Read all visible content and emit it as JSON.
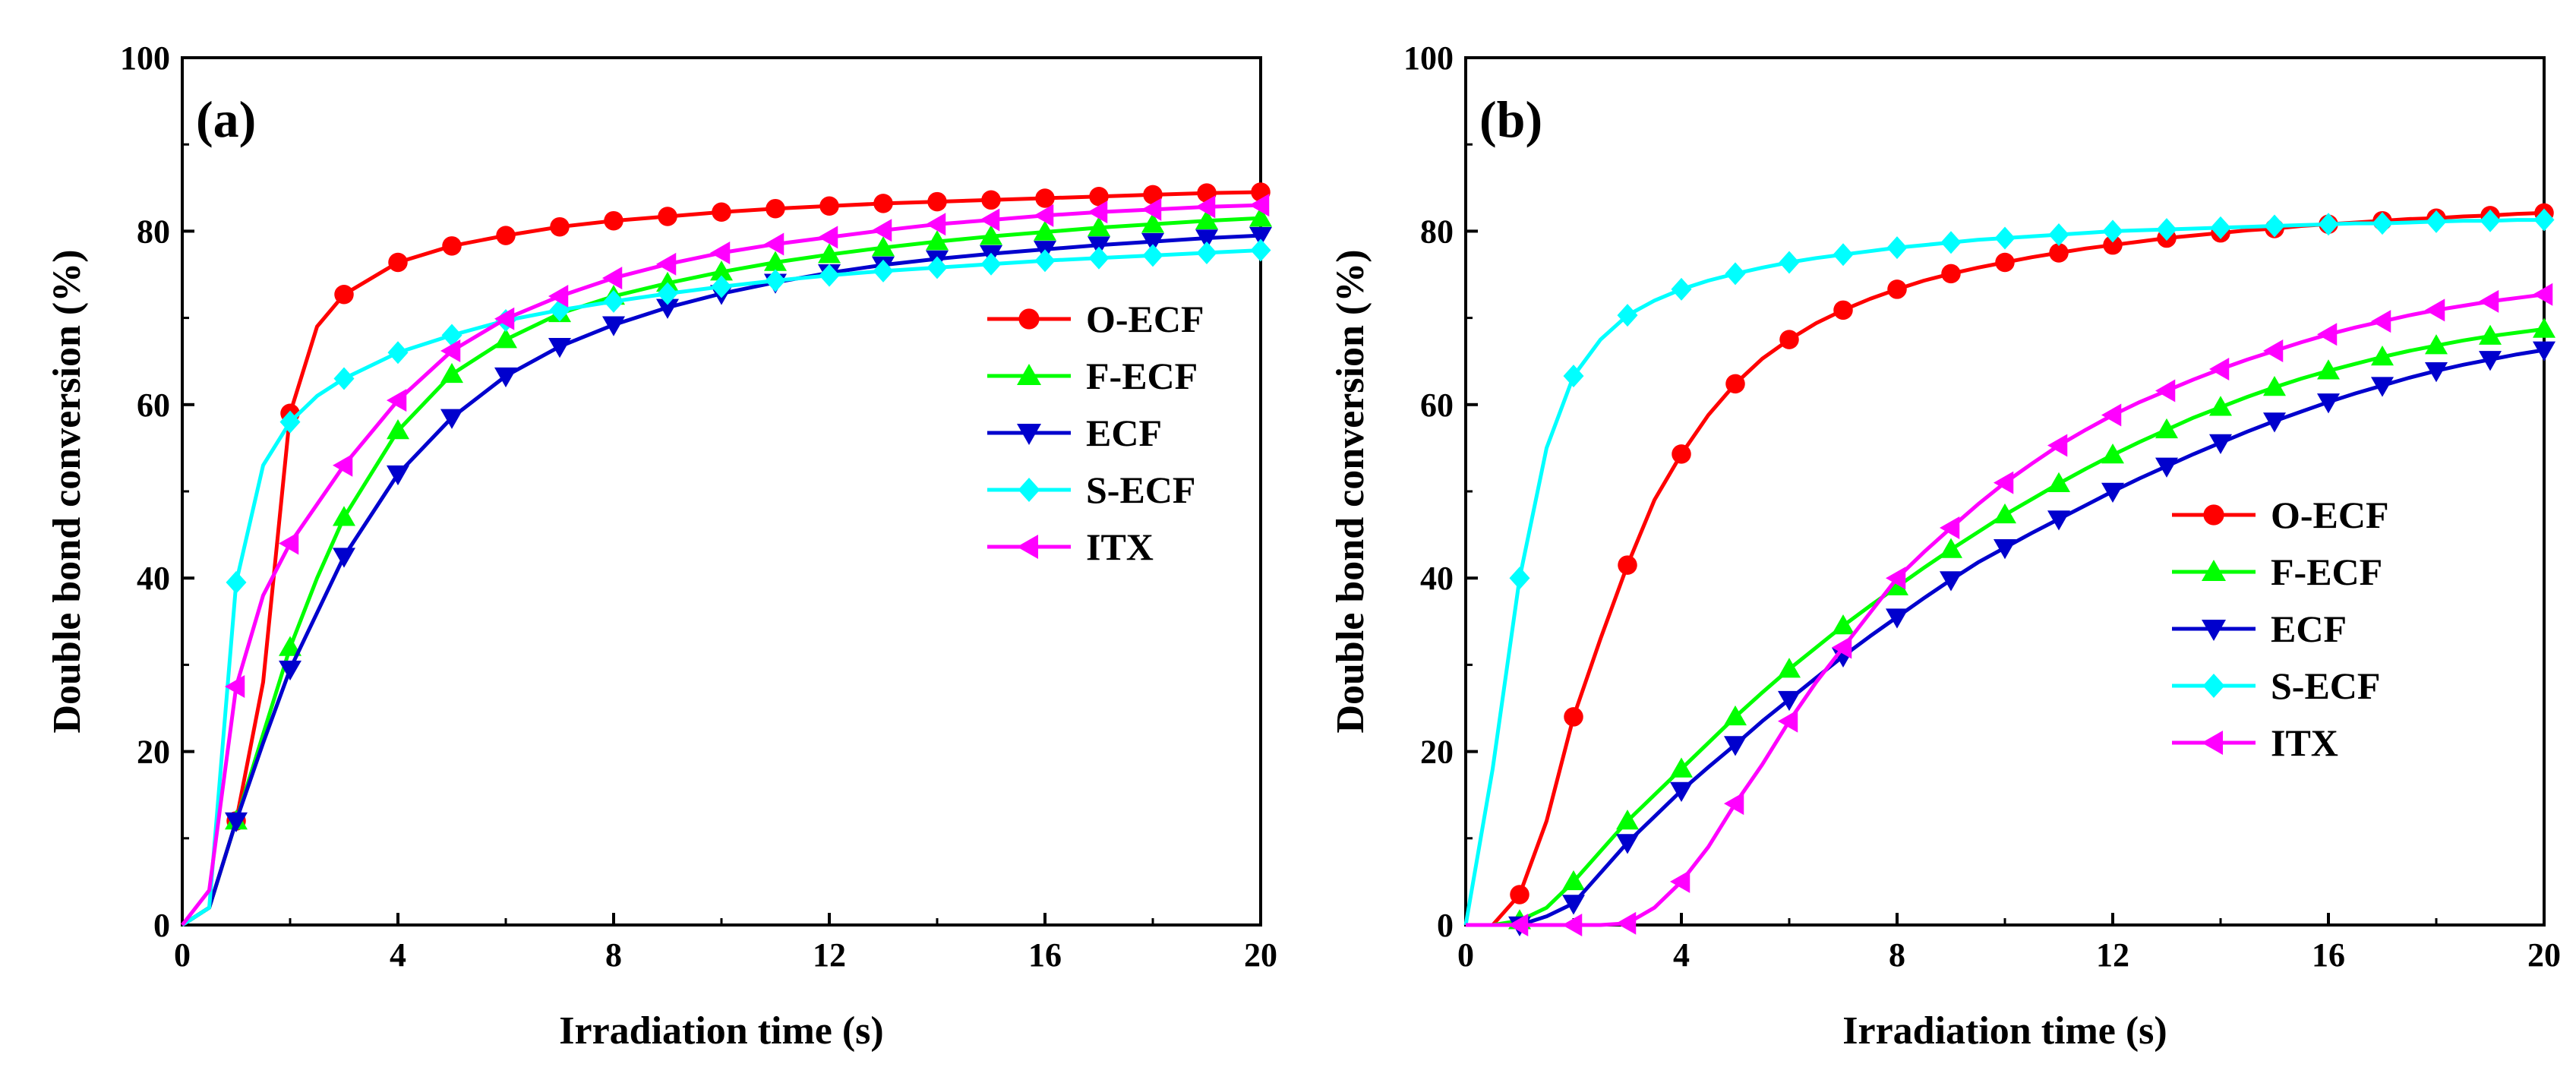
{
  "figure": {
    "panels": [
      "a",
      "b"
    ]
  },
  "colors": {
    "O-ECF": "#ff0000",
    "F-ECF": "#00ff00",
    "ECF": "#0000cd",
    "S-ECF": "#00ffff",
    "ITX": "#ff00ff"
  },
  "markers": {
    "O-ECF": "circle",
    "F-ECF": "triangle-up",
    "ECF": "triangle-down",
    "S-ECF": "diamond",
    "ITX": "triangle-left"
  },
  "chart_data": [
    {
      "type": "line",
      "panel_label": "(a)",
      "title": "",
      "xlabel": "Irradiation time (s)",
      "ylabel": "Double bond conversion (%)",
      "xlim": [
        0,
        20
      ],
      "ylim": [
        0,
        100
      ],
      "xticks": [
        0,
        4,
        8,
        12,
        16,
        20
      ],
      "yticks": [
        0,
        20,
        40,
        60,
        80,
        100
      ],
      "legend_position": "middle-right",
      "x": [
        0,
        0.5,
        1,
        1.5,
        2,
        2.5,
        3,
        4,
        5,
        6,
        7,
        8,
        9,
        10,
        11,
        12,
        13,
        14,
        15,
        16,
        17,
        18,
        19,
        20
      ],
      "series": [
        {
          "name": "O-ECF",
          "values": [
            0,
            2,
            12,
            28,
            59,
            69,
            72.7,
            76.4,
            78.3,
            79.5,
            80.5,
            81.2,
            81.7,
            82.2,
            82.6,
            82.9,
            83.2,
            83.4,
            83.6,
            83.8,
            84.0,
            84.2,
            84.4,
            84.5
          ]
        },
        {
          "name": "F-ECF",
          "values": [
            0,
            2,
            12,
            22,
            32,
            40,
            47,
            57,
            63.5,
            67.5,
            70.5,
            72.5,
            74.0,
            75.3,
            76.4,
            77.3,
            78.1,
            78.8,
            79.4,
            79.9,
            80.4,
            80.8,
            81.2,
            81.5
          ]
        },
        {
          "name": "ECF",
          "values": [
            0,
            2,
            12,
            21,
            29.5,
            36,
            42.5,
            52,
            58.5,
            63.3,
            66.7,
            69.2,
            71.2,
            72.8,
            74.1,
            75.2,
            76.1,
            76.8,
            77.4,
            77.9,
            78.4,
            78.8,
            79.2,
            79.5
          ]
        },
        {
          "name": "S-ECF",
          "values": [
            0,
            2,
            39.5,
            53,
            58,
            61,
            63,
            66,
            68,
            69.7,
            70.9,
            71.9,
            72.8,
            73.6,
            74.3,
            74.9,
            75.4,
            75.8,
            76.2,
            76.6,
            76.9,
            77.2,
            77.5,
            77.8
          ]
        },
        {
          "name": "ITX",
          "values": [
            0,
            4,
            27.5,
            38,
            44,
            48.5,
            53,
            60.5,
            66.2,
            69.9,
            72.5,
            74.6,
            76.2,
            77.5,
            78.5,
            79.3,
            80.1,
            80.8,
            81.3,
            81.8,
            82.2,
            82.5,
            82.8,
            83.0
          ]
        }
      ]
    },
    {
      "type": "line",
      "panel_label": "(b)",
      "title": "",
      "xlabel": "Irradiation time (s)",
      "ylabel": "Double bond conversion (%)",
      "xlim": [
        0,
        20
      ],
      "ylim": [
        0,
        100
      ],
      "xticks": [
        0,
        4,
        8,
        12,
        16,
        20
      ],
      "yticks": [
        0,
        20,
        40,
        60,
        80,
        100
      ],
      "legend_position": "lower-right",
      "x": [
        0,
        0.5,
        1,
        1.5,
        2,
        2.5,
        3,
        3.5,
        4,
        4.5,
        5,
        5.5,
        6,
        6.5,
        7,
        7.5,
        8,
        8.5,
        9,
        9.5,
        10,
        10.5,
        11,
        11.5,
        12,
        12.5,
        13,
        13.5,
        14,
        14.5,
        15,
        15.5,
        16,
        16.5,
        17,
        17.5,
        18,
        18.5,
        19,
        19.5,
        20
      ],
      "series": [
        {
          "name": "O-ECF",
          "values": [
            0,
            0,
            3.5,
            12,
            24,
            33,
            41.5,
            49,
            54.3,
            58.8,
            62.4,
            65.3,
            67.5,
            69.4,
            70.9,
            72.2,
            73.3,
            74.3,
            75.1,
            75.8,
            76.4,
            77.0,
            77.5,
            78.0,
            78.4,
            78.8,
            79.2,
            79.5,
            79.8,
            80.1,
            80.3,
            80.6,
            80.8,
            81.0,
            81.2,
            81.4,
            81.5,
            81.7,
            81.8,
            82.0,
            82.1
          ]
        },
        {
          "name": "F-ECF",
          "values": [
            0,
            0,
            0.5,
            2,
            5,
            8.5,
            12,
            15,
            18,
            21,
            24,
            26.8,
            29.5,
            32,
            34.5,
            36.8,
            39,
            41.2,
            43.3,
            45.3,
            47.3,
            49.1,
            50.9,
            52.6,
            54.2,
            55.7,
            57.1,
            58.5,
            59.7,
            60.9,
            62.0,
            63.0,
            63.9,
            64.7,
            65.5,
            66.2,
            66.8,
            67.4,
            67.9,
            68.3,
            68.7
          ]
        },
        {
          "name": "ECF",
          "values": [
            0,
            0,
            0,
            1,
            2.5,
            6,
            9.5,
            12.5,
            15.5,
            18.2,
            20.8,
            23.5,
            26,
            28.5,
            31,
            33.3,
            35.5,
            37.7,
            39.8,
            41.8,
            43.5,
            45.2,
            46.8,
            48.4,
            50.0,
            51.5,
            52.9,
            54.3,
            55.6,
            56.9,
            58.1,
            59.2,
            60.3,
            61.3,
            62.2,
            63.1,
            63.9,
            64.6,
            65.2,
            65.8,
            66.3
          ]
        },
        {
          "name": "S-ECF",
          "values": [
            0,
            18,
            40,
            55,
            63.3,
            67.5,
            70.3,
            72,
            73.3,
            74.3,
            75.1,
            75.8,
            76.4,
            76.9,
            77.3,
            77.7,
            78.1,
            78.4,
            78.7,
            79.0,
            79.2,
            79.4,
            79.6,
            79.8,
            80.0,
            80.1,
            80.2,
            80.3,
            80.4,
            80.5,
            80.6,
            80.7,
            80.8,
            80.9,
            80.9,
            81.0,
            81.1,
            81.2,
            81.2,
            81.3,
            81.3
          ]
        },
        {
          "name": "ITX",
          "values": [
            0,
            0,
            0,
            0,
            0,
            0,
            0.2,
            2,
            5,
            9,
            14,
            18.5,
            23.5,
            28,
            32,
            36,
            40,
            43,
            45.8,
            48.5,
            51,
            53.2,
            55.3,
            57.1,
            58.8,
            60.3,
            61.6,
            62.9,
            64.1,
            65.2,
            66.2,
            67.2,
            68.1,
            68.9,
            69.6,
            70.3,
            70.9,
            71.4,
            71.9,
            72.3,
            72.7
          ]
        }
      ]
    }
  ]
}
